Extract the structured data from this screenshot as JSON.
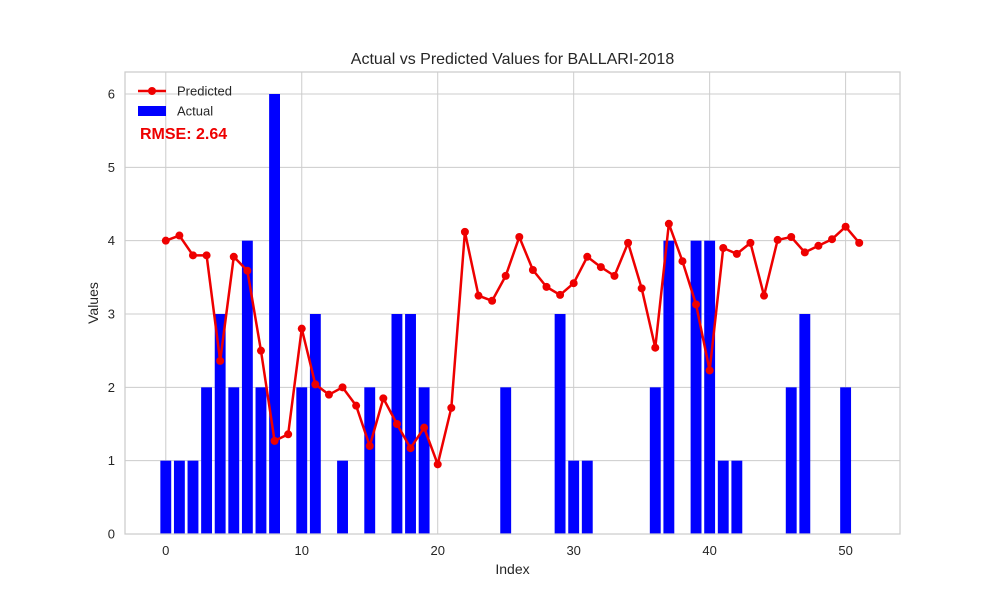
{
  "chart_data": {
    "type": "bar",
    "title": "Actual vs Predicted Values for BALLARI-2018",
    "xlabel": "Index",
    "ylabel": "Values",
    "xlim": [
      -3,
      54
    ],
    "ylim": [
      0,
      6.3
    ],
    "xticks": [
      0,
      10,
      20,
      30,
      40,
      50
    ],
    "yticks": [
      0,
      1,
      2,
      3,
      4,
      5,
      6
    ],
    "grid": true,
    "legend_position": "top-left",
    "annotation": "RMSE: 2.64",
    "colors": {
      "actual": "#0000ff",
      "predicted": "#ee0000",
      "grid": "#cccccc",
      "annotation": "#ee0000"
    },
    "series": [
      {
        "name": "Actual",
        "type": "bar",
        "x": [
          0,
          1,
          2,
          3,
          4,
          5,
          6,
          7,
          8,
          9,
          10,
          11,
          12,
          13,
          14,
          15,
          16,
          17,
          18,
          19,
          20,
          21,
          22,
          23,
          24,
          25,
          26,
          27,
          28,
          29,
          30,
          31,
          32,
          33,
          34,
          35,
          36,
          37,
          38,
          39,
          40,
          41,
          42,
          43,
          44,
          45,
          46,
          47,
          48,
          49,
          50,
          51
        ],
        "values": [
          1,
          1,
          1,
          2,
          3,
          2,
          4,
          2,
          6,
          0,
          2,
          3,
          0,
          1,
          0,
          2,
          0,
          3,
          3,
          2,
          0,
          0,
          0,
          0,
          0,
          2,
          0,
          0,
          0,
          3,
          1,
          1,
          0,
          0,
          0,
          0,
          2,
          4,
          0,
          4,
          4,
          1,
          1,
          0,
          0,
          0,
          2,
          3,
          0,
          0,
          2,
          0
        ]
      },
      {
        "name": "Predicted",
        "type": "line",
        "x": [
          0,
          1,
          2,
          3,
          4,
          5,
          6,
          7,
          8,
          9,
          10,
          11,
          12,
          13,
          14,
          15,
          16,
          17,
          18,
          19,
          20,
          21,
          22,
          23,
          24,
          25,
          26,
          27,
          28,
          29,
          30,
          31,
          32,
          33,
          34,
          35,
          36,
          37,
          38,
          39,
          40,
          41,
          42,
          43,
          44,
          45,
          46,
          47,
          48,
          49,
          50,
          51
        ],
        "values": [
          4.0,
          4.07,
          3.8,
          3.8,
          2.36,
          3.78,
          3.59,
          2.5,
          1.27,
          1.36,
          2.8,
          2.04,
          1.9,
          2.0,
          1.75,
          1.2,
          1.85,
          1.5,
          1.17,
          1.45,
          0.95,
          1.72,
          4.12,
          3.25,
          3.18,
          3.52,
          4.05,
          3.6,
          3.37,
          3.26,
          3.42,
          3.78,
          3.64,
          3.52,
          3.97,
          3.35,
          2.54,
          4.23,
          3.72,
          3.13,
          2.23,
          3.9,
          3.82,
          3.97,
          3.25,
          4.01,
          4.05,
          3.84,
          3.93,
          4.02,
          4.19,
          3.97
        ]
      }
    ]
  }
}
